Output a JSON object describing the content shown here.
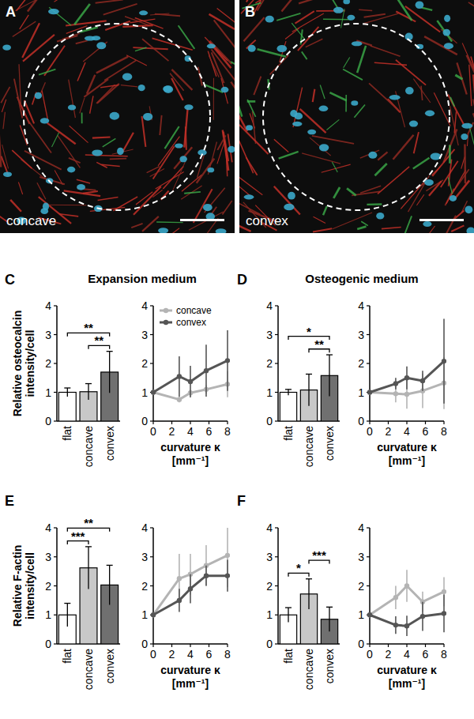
{
  "images": [
    {
      "panel": "A",
      "caption": "concave"
    },
    {
      "panel": "B",
      "caption": "convex"
    }
  ],
  "chart_data": [
    {
      "type": "bar",
      "panel": "C",
      "title": "Expansion medium",
      "ylabel": "Relative osteocalcin intensity/cell",
      "categories": [
        "flat",
        "concave",
        "convex"
      ],
      "values": [
        1.0,
        1.02,
        1.7
      ],
      "errors": [
        0.15,
        0.28,
        0.72
      ],
      "colors": [
        "#ffffff",
        "#c8c8c8",
        "#707070"
      ],
      "ylim": [
        0,
        4
      ],
      "yticks": [
        0,
        1,
        2,
        3,
        4
      ],
      "significance": [
        {
          "pair": [
            "flat",
            "convex"
          ],
          "label": "**"
        },
        {
          "pair": [
            "concave",
            "convex"
          ],
          "label": "**"
        }
      ]
    },
    {
      "type": "line",
      "xlabel": "curvature κ [mm⁻¹]",
      "x": [
        0,
        2.8,
        4,
        5.7,
        8
      ],
      "xlim": [
        0,
        8
      ],
      "xticks": [
        0,
        2,
        4,
        6,
        8
      ],
      "ylim": [
        0,
        4
      ],
      "yticks": [
        0,
        1,
        2,
        3,
        4
      ],
      "marker": "circle",
      "legend": "upper left",
      "series": [
        {
          "name": "concave",
          "color": "#b4b4b4",
          "values": [
            1,
            0.75,
            0.98,
            1.1,
            1.28
          ],
          "errors": [
            0,
            0.1,
            0.1,
            0.15,
            0.45
          ]
        },
        {
          "name": "convex",
          "color": "#555555",
          "values": [
            1,
            1.55,
            1.37,
            1.75,
            2.1
          ],
          "errors": [
            0,
            0.7,
            0.55,
            0.9,
            1.05
          ]
        }
      ]
    },
    {
      "type": "bar",
      "panel": "D",
      "title": "Osteogenic medium",
      "categories": [
        "flat",
        "concave",
        "convex"
      ],
      "values": [
        1.0,
        1.08,
        1.58
      ],
      "errors": [
        0.1,
        0.55,
        0.72
      ],
      "colors": [
        "#ffffff",
        "#c8c8c8",
        "#707070"
      ],
      "ylim": [
        0,
        4
      ],
      "yticks": [
        0,
        1,
        2,
        3,
        4
      ],
      "significance": [
        {
          "pair": [
            "flat",
            "convex"
          ],
          "label": "*"
        },
        {
          "pair": [
            "concave",
            "convex"
          ],
          "label": "**"
        }
      ]
    },
    {
      "type": "line",
      "xlabel": "curvature κ [mm⁻¹]",
      "x": [
        0,
        2.8,
        4,
        5.7,
        8
      ],
      "xlim": [
        0,
        8
      ],
      "xticks": [
        0,
        2,
        4,
        6,
        8
      ],
      "ylim": [
        0,
        4
      ],
      "yticks": [
        0,
        1,
        2,
        3,
        4
      ],
      "marker": "circle",
      "series": [
        {
          "color": "#b4b4b4",
          "values": [
            1,
            0.95,
            0.93,
            1.05,
            1.32
          ],
          "errors": [
            0,
            0.3,
            0.5,
            0.6,
            0.9
          ]
        },
        {
          "color": "#555555",
          "values": [
            1,
            1.3,
            1.5,
            1.4,
            2.08
          ],
          "errors": [
            0,
            0.2,
            0.4,
            0.35,
            1.47
          ]
        }
      ]
    },
    {
      "type": "bar",
      "panel": "E",
      "ylabel": "Relative F-actin intensity/cell",
      "categories": [
        "flat",
        "concave",
        "convex"
      ],
      "values": [
        1.0,
        2.62,
        2.03
      ],
      "errors": [
        0.4,
        0.73,
        0.68
      ],
      "colors": [
        "#ffffff",
        "#c8c8c8",
        "#707070"
      ],
      "ylim": [
        0,
        4
      ],
      "yticks": [
        0,
        1,
        2,
        3,
        4
      ],
      "significance": [
        {
          "pair": [
            "flat",
            "concave"
          ],
          "label": "***"
        },
        {
          "pair": [
            "flat",
            "convex"
          ],
          "label": "**"
        }
      ]
    },
    {
      "type": "line",
      "xlabel": "curvature κ [mm⁻¹]",
      "x": [
        0,
        2.8,
        4,
        5.7,
        8
      ],
      "xlim": [
        0,
        8
      ],
      "xticks": [
        0,
        2,
        4,
        6,
        8
      ],
      "ylim": [
        0,
        4
      ],
      "yticks": [
        0,
        1,
        2,
        3,
        4
      ],
      "marker": "circle",
      "series": [
        {
          "color": "#b4b4b4",
          "values": [
            1,
            2.25,
            2.4,
            2.7,
            3.05
          ],
          "errors": [
            0,
            0.85,
            0.7,
            0.7,
            1.1
          ]
        },
        {
          "color": "#555555",
          "values": [
            1,
            1.5,
            1.9,
            2.35,
            2.35
          ],
          "errors": [
            0,
            0.4,
            0.5,
            0.35,
            0.55
          ]
        }
      ]
    },
    {
      "type": "bar",
      "panel": "F",
      "categories": [
        "flat",
        "concave",
        "convex"
      ],
      "values": [
        1.0,
        1.72,
        0.85
      ],
      "errors": [
        0.25,
        0.52,
        0.42
      ],
      "colors": [
        "#ffffff",
        "#c8c8c8",
        "#707070"
      ],
      "ylim": [
        0,
        4
      ],
      "yticks": [
        0,
        1,
        2,
        3,
        4
      ],
      "significance": [
        {
          "pair": [
            "flat",
            "concave"
          ],
          "label": "*"
        },
        {
          "pair": [
            "concave",
            "convex"
          ],
          "label": "***"
        }
      ]
    },
    {
      "type": "line",
      "xlabel": "curvature κ [mm⁻¹]",
      "x": [
        0,
        2.8,
        4,
        5.7,
        8
      ],
      "xlim": [
        0,
        8
      ],
      "xticks": [
        0,
        2,
        4,
        6,
        8
      ],
      "ylim": [
        0,
        4
      ],
      "yticks": [
        0,
        1,
        2,
        3,
        4
      ],
      "marker": "circle",
      "series": [
        {
          "color": "#b4b4b4",
          "values": [
            1,
            1.6,
            2.0,
            1.45,
            1.8
          ],
          "errors": [
            0,
            0.4,
            0.55,
            0.35,
            0.5
          ]
        },
        {
          "color": "#555555",
          "values": [
            1,
            0.65,
            0.62,
            0.95,
            1.05
          ],
          "errors": [
            0,
            0.3,
            0.35,
            0.5,
            0.65
          ]
        }
      ]
    }
  ]
}
